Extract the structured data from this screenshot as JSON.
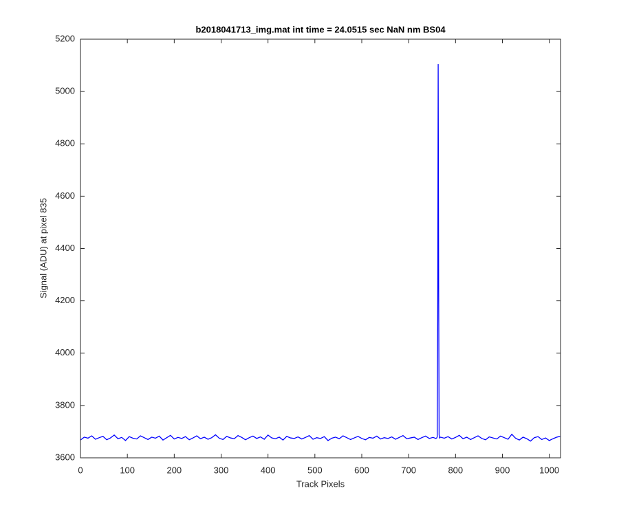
{
  "chart_data": {
    "type": "line",
    "title": "b2018041713_img.mat int time = 24.0515 sec  NaN nm BS04",
    "x_label": "Track Pixels",
    "y_label": "Signal (ADU) at pixel 835",
    "x": [
      0,
      8,
      16,
      24,
      32,
      40,
      48,
      56,
      64,
      72,
      80,
      88,
      96,
      104,
      112,
      120,
      128,
      136,
      144,
      152,
      160,
      168,
      176,
      184,
      192,
      200,
      208,
      216,
      224,
      232,
      240,
      248,
      256,
      264,
      272,
      280,
      288,
      296,
      304,
      312,
      320,
      328,
      336,
      344,
      352,
      360,
      368,
      376,
      384,
      392,
      400,
      408,
      416,
      424,
      432,
      440,
      448,
      456,
      464,
      472,
      480,
      488,
      496,
      504,
      512,
      520,
      528,
      536,
      544,
      552,
      560,
      568,
      576,
      584,
      592,
      600,
      608,
      616,
      624,
      632,
      640,
      648,
      656,
      664,
      672,
      680,
      688,
      696,
      704,
      712,
      720,
      728,
      736,
      744,
      752,
      758,
      760,
      761,
      762,
      763,
      764,
      765,
      766,
      768,
      776,
      784,
      792,
      800,
      808,
      816,
      824,
      832,
      840,
      848,
      856,
      864,
      872,
      880,
      888,
      896,
      904,
      912,
      920,
      928,
      936,
      944,
      952,
      960,
      968,
      976,
      984,
      992,
      1000,
      1008,
      1016,
      1023
    ],
    "series": [
      {
        "color": "#0000ff",
        "values": [
          3668,
          3679,
          3675,
          3684,
          3671,
          3677,
          3682,
          3669,
          3676,
          3687,
          3673,
          3678,
          3666,
          3681,
          3675,
          3672,
          3684,
          3677,
          3670,
          3679,
          3675,
          3683,
          3668,
          3677,
          3686,
          3672,
          3678,
          3674,
          3681,
          3669,
          3676,
          3684,
          3673,
          3679,
          3671,
          3677,
          3688,
          3675,
          3670,
          3682,
          3676,
          3673,
          3685,
          3678,
          3669,
          3677,
          3683,
          3674,
          3680,
          3671,
          3687,
          3676,
          3673,
          3679,
          3668,
          3682,
          3676,
          3674,
          3680,
          3672,
          3678,
          3685,
          3671,
          3677,
          3674,
          3681,
          3666,
          3675,
          3679,
          3673,
          3684,
          3677,
          3670,
          3676,
          3682,
          3674,
          3669,
          3678,
          3675,
          3683,
          3672,
          3677,
          3674,
          3680,
          3671,
          3678,
          3685,
          3673,
          3676,
          3679,
          3670,
          3677,
          3683,
          3674,
          3678,
          3674,
          3676,
          3681,
          4135,
          5105,
          4265,
          3688,
          3676,
          3679,
          3675,
          3681,
          3672,
          3678,
          3686,
          3673,
          3679,
          3670,
          3677,
          3684,
          3674,
          3669,
          3680,
          3676,
          3672,
          3683,
          3677,
          3671,
          3690,
          3675,
          3668,
          3679,
          3673,
          3664,
          3677,
          3681,
          3670,
          3676,
          3666,
          3673,
          3679,
          3682
        ]
      }
    ],
    "xlim": [
      0,
      1024
    ],
    "ylim": [
      3600,
      5200
    ],
    "xticks": [
      0,
      100,
      200,
      300,
      400,
      500,
      600,
      700,
      800,
      900,
      1000
    ],
    "yticks": [
      3600,
      3800,
      4000,
      4200,
      4400,
      4600,
      4800,
      5000,
      5200
    ]
  }
}
